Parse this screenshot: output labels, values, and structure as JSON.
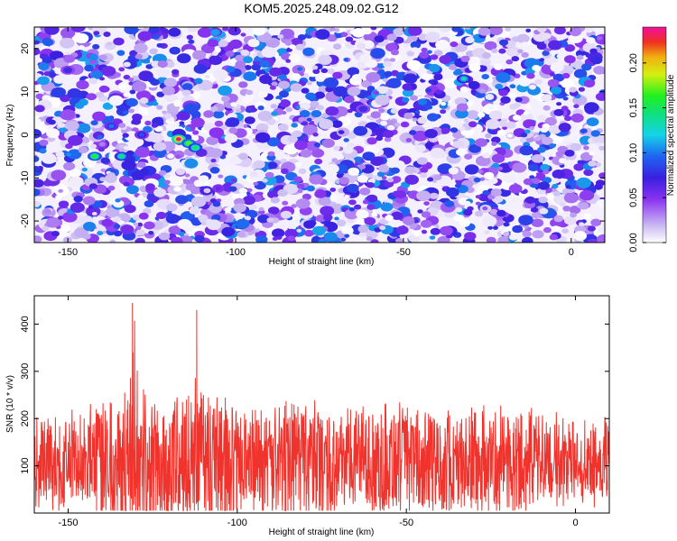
{
  "title": "KOM5.2025.248.09.02.G12",
  "chart_data": [
    {
      "type": "heatmap",
      "xlabel": "Height of straight line (km)",
      "ylabel": "Frequency (Hz)",
      "xlim": [
        -160,
        10
      ],
      "ylim": [
        -25,
        25
      ],
      "xticks": [
        -150,
        -100,
        -50,
        0
      ],
      "yticks": [
        -20,
        -10,
        0,
        10,
        20
      ],
      "colorbar": {
        "label": "Normalized spectral amplitude",
        "range": [
          0.0,
          0.24
        ],
        "ticks": [
          "0.00",
          "0.05",
          "0.10",
          "0.15",
          "0.20"
        ]
      },
      "peaks": [
        {
          "x": -117,
          "y": -1,
          "value": 0.24
        },
        {
          "x": -114,
          "y": -2,
          "value": 0.17
        },
        {
          "x": -112,
          "y": -3,
          "value": 0.15
        },
        {
          "x": -142,
          "y": -5,
          "value": 0.16
        },
        {
          "x": -134,
          "y": -5,
          "value": 0.14
        },
        {
          "x": -32,
          "y": 13,
          "value": 0.13
        },
        {
          "x": -137,
          "y": 2,
          "value": 0.1
        },
        {
          "x": -128,
          "y": 0,
          "value": 0.09
        },
        {
          "x": -150,
          "y": 15,
          "value": 0.08
        },
        {
          "x": -62,
          "y": 6,
          "value": 0.08
        }
      ]
    },
    {
      "type": "line",
      "xlabel": "Height of straight line (km)",
      "ylabel": "SNR (10 * v/v)",
      "xlim": [
        -160,
        10
      ],
      "ylim": [
        0,
        460
      ],
      "xticks": [
        -150,
        -100,
        -50,
        0
      ],
      "yticks": [
        100,
        200,
        300,
        400
      ],
      "series": [
        {
          "color": "#f0332c",
          "x": [
            -160,
            -155,
            -150,
            -145,
            -140,
            -135,
            -131,
            -125,
            -120,
            -115,
            -112,
            -110,
            -105,
            -100,
            -95,
            -90,
            -85,
            -80,
            -75,
            -70,
            -65,
            -60,
            -55,
            -50,
            -45,
            -40,
            -35,
            -30,
            -25,
            -20,
            -15,
            -10,
            -5,
            0,
            5,
            10
          ],
          "y": [
            130,
            140,
            150,
            145,
            190,
            170,
            445,
            180,
            190,
            240,
            430,
            250,
            190,
            160,
            150,
            165,
            200,
            170,
            165,
            160,
            150,
            160,
            165,
            150,
            160,
            140,
            150,
            180,
            150,
            160,
            140,
            130,
            120,
            110,
            120,
            110
          ]
        }
      ]
    }
  ]
}
